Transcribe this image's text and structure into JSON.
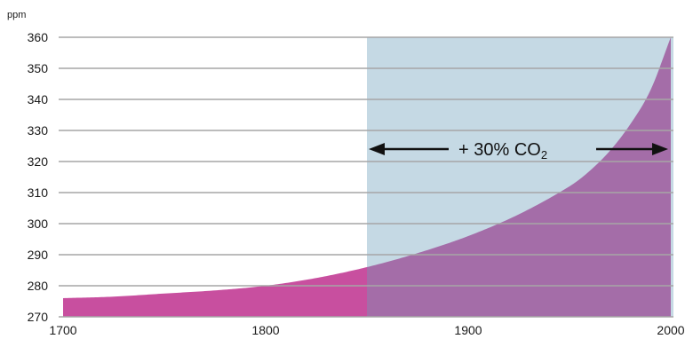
{
  "chart_data": {
    "type": "area",
    "xlim": [
      1700,
      2000
    ],
    "ylim": [
      270,
      360
    ],
    "y_unit": "ppm",
    "x_ticks": [
      "1700",
      "1800",
      "1900",
      "2000"
    ],
    "y_ticks": [
      "270",
      "280",
      "290",
      "300",
      "310",
      "320",
      "330",
      "340",
      "350",
      "360"
    ],
    "grid": "horizontal",
    "highlight_start_year": 1850,
    "annotation": {
      "prefix": "+ 30% CO",
      "subscript": "2",
      "arrow": "double-headed",
      "y_value": 324
    },
    "series": [
      {
        "x": [
          1700,
          1725,
          1750,
          1775,
          1800,
          1825,
          1850,
          1875,
          1900,
          1925,
          1950,
          1960,
          1970,
          1980,
          1990,
          2000
        ],
        "y": [
          276,
          276.5,
          277.5,
          278.5,
          280,
          282.5,
          286,
          290.5,
          296,
          303,
          312,
          317,
          323.5,
          332,
          343,
          360
        ]
      }
    ]
  },
  "colors": {
    "area_pre_1850": "#c84f9f",
    "area_post_1850": "#a46da8",
    "highlight_band": "#c5d9e4",
    "gridline": "#a6a6a6",
    "text": "#1a1a1a"
  }
}
